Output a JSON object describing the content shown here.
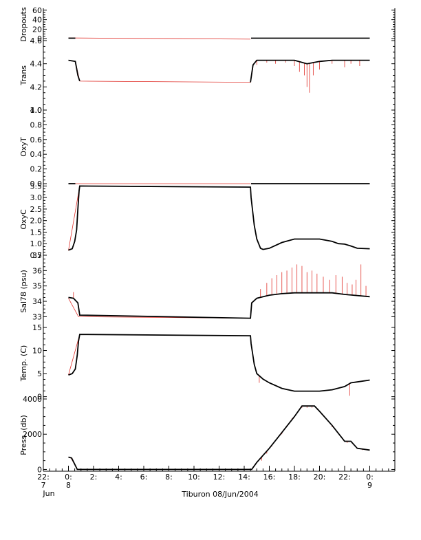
{
  "figure": {
    "xlabel": "Tiburon 08/Jun/2004",
    "colors": {
      "raw": "#e0302a",
      "main": "#000000",
      "axis": "#000000",
      "minor": "#b0b0b0"
    }
  },
  "chart_data": [
    {
      "type": "line",
      "name": "dropouts-panel",
      "ylabel": "Dropouts",
      "ylim": [
        -4,
        64
      ],
      "yticks": [
        0,
        20,
        40,
        60
      ],
      "ytick_labels": [
        "0",
        "20",
        "40",
        "60"
      ],
      "series": [
        {
          "name": "raw",
          "segments": [
            [
              [
                0.0,
                1.5
              ],
              [
                0.55,
                1.5
              ],
              [
                14.5,
                -1.0
              ]
            ]
          ]
        },
        {
          "name": "main",
          "segments": [
            [
              [
                0.0,
                1.0
              ],
              [
                0.55,
                1.0
              ]
            ],
            [
              [
                14.55,
                1.0
              ],
              [
                24.0,
                1.0
              ]
            ]
          ]
        }
      ]
    },
    {
      "type": "line",
      "name": "trans-panel",
      "ylabel": "Trans",
      "ylim": [
        4.0,
        4.6
      ],
      "yticks": [
        4.0,
        4.2,
        4.4,
        4.6
      ],
      "ytick_labels": [
        "4.0",
        "4.2",
        "4.4",
        "4.6"
      ],
      "series": [
        {
          "name": "raw",
          "segments": [
            [
              [
                0.0,
                4.43
              ],
              [
                0.55,
                4.42
              ],
              [
                0.9,
                4.25
              ],
              [
                14.5,
                4.24
              ],
              [
                14.7,
                4.37
              ]
            ]
          ]
        },
        {
          "name": "main",
          "segments": [
            [
              [
                0.0,
                4.43
              ],
              [
                0.55,
                4.42
              ],
              [
                0.75,
                4.3
              ],
              [
                0.9,
                4.25
              ]
            ],
            [
              [
                14.5,
                4.24
              ],
              [
                14.7,
                4.39
              ],
              [
                15.0,
                4.43
              ],
              [
                18.0,
                4.43
              ],
              [
                19.0,
                4.4
              ],
              [
                20.0,
                4.42
              ],
              [
                21.0,
                4.43
              ],
              [
                24.0,
                4.43
              ]
            ]
          ]
        }
      ],
      "spikes_down": {
        "values": [
          [
            15.0,
            4.39
          ],
          [
            15.8,
            4.41
          ],
          [
            16.5,
            4.4
          ],
          [
            17.3,
            4.41
          ],
          [
            18.0,
            4.38
          ],
          [
            18.4,
            4.33
          ],
          [
            18.8,
            4.3
          ],
          [
            19.0,
            4.2
          ],
          [
            19.2,
            4.15
          ],
          [
            19.5,
            4.3
          ],
          [
            20.0,
            4.35
          ],
          [
            21.0,
            4.4
          ],
          [
            22.0,
            4.37
          ],
          [
            22.5,
            4.4
          ],
          [
            23.2,
            4.38
          ]
        ]
      }
    },
    {
      "type": "line",
      "name": "oxyt-panel",
      "ylabel": "OxyT",
      "ylim": [
        0.0,
        1.0
      ],
      "yticks": [
        0.0,
        0.2,
        0.4,
        0.6,
        0.8,
        1.0
      ],
      "ytick_labels": [
        "0.0",
        "0.2",
        "0.4",
        "0.6",
        "0.8",
        "1.0"
      ],
      "series": [
        {
          "name": "raw",
          "segments": [
            [
              [
                0.55,
                0.0
              ],
              [
                14.5,
                0.0
              ]
            ]
          ]
        },
        {
          "name": "main",
          "segments": [
            [
              [
                0.0,
                0.0
              ],
              [
                0.55,
                0.0
              ]
            ],
            [
              [
                14.55,
                0.0
              ],
              [
                24.0,
                0.0
              ]
            ]
          ]
        }
      ]
    },
    {
      "type": "line",
      "name": "oxyc-panel",
      "ylabel": "OxyC",
      "ylim": [
        0.5,
        3.6
      ],
      "yticks": [
        0.5,
        1.0,
        1.5,
        2.0,
        2.5,
        3.0,
        3.5
      ],
      "ytick_labels": [
        "0.5",
        "1.0",
        "1.5",
        "2.0",
        "2.5",
        "3.0",
        "3.5"
      ],
      "series": [
        {
          "name": "raw",
          "segments": [
            [
              [
                0.0,
                0.7
              ],
              [
                0.9,
                3.5
              ],
              [
                14.5,
                3.45
              ]
            ]
          ]
        },
        {
          "name": "main",
          "segments": [
            [
              [
                0.0,
                0.72
              ],
              [
                0.3,
                0.78
              ],
              [
                0.5,
                1.1
              ],
              [
                0.65,
                1.6
              ],
              [
                0.75,
                2.5
              ],
              [
                0.85,
                3.3
              ],
              [
                0.9,
                3.5
              ],
              [
                14.5,
                3.45
              ],
              [
                14.55,
                3.0
              ],
              [
                14.8,
                1.8
              ],
              [
                15.0,
                1.2
              ],
              [
                15.3,
                0.8
              ],
              [
                15.5,
                0.75
              ],
              [
                16.0,
                0.8
              ],
              [
                17.0,
                1.05
              ],
              [
                18.0,
                1.2
              ],
              [
                20.0,
                1.2
              ],
              [
                21.0,
                1.1
              ],
              [
                21.5,
                1.0
              ],
              [
                22.0,
                0.98
              ],
              [
                22.5,
                0.9
              ],
              [
                23.0,
                0.8
              ],
              [
                24.0,
                0.78
              ]
            ]
          ]
        }
      ]
    },
    {
      "type": "line",
      "name": "sal-panel",
      "ylabel": "Sal78 (psu)",
      "ylim": [
        32.3,
        37.0
      ],
      "yticks": [
        33,
        34,
        35,
        36,
        37
      ],
      "ytick_labels": [
        "33",
        "34",
        "35",
        "36",
        "37"
      ],
      "series": [
        {
          "name": "raw",
          "segments": [
            [
              [
                0.0,
                34.2
              ],
              [
                0.8,
                33.0
              ],
              [
                14.5,
                32.9
              ]
            ]
          ]
        },
        {
          "name": "main",
          "segments": [
            [
              [
                0.0,
                34.25
              ],
              [
                0.4,
                34.2
              ],
              [
                0.75,
                33.9
              ],
              [
                0.9,
                33.1
              ],
              [
                14.5,
                32.9
              ],
              [
                14.6,
                33.9
              ],
              [
                15.0,
                34.2
              ],
              [
                16.0,
                34.4
              ],
              [
                17.0,
                34.5
              ],
              [
                18.0,
                34.55
              ],
              [
                21.0,
                34.55
              ],
              [
                22.0,
                34.45
              ],
              [
                24.0,
                34.3
              ]
            ]
          ]
        }
      ],
      "spikes_up": {
        "values": [
          [
            0.4,
            34.6
          ],
          [
            15.3,
            34.8
          ],
          [
            15.8,
            35.2
          ],
          [
            16.2,
            35.5
          ],
          [
            16.6,
            35.7
          ],
          [
            17.0,
            35.9
          ],
          [
            17.4,
            36.0
          ],
          [
            17.8,
            36.2
          ],
          [
            18.2,
            36.4
          ],
          [
            18.6,
            36.3
          ],
          [
            19.0,
            35.9
          ],
          [
            19.4,
            36.0
          ],
          [
            19.8,
            35.8
          ],
          [
            20.3,
            35.6
          ],
          [
            20.8,
            35.4
          ],
          [
            21.3,
            35.7
          ],
          [
            21.8,
            35.6
          ],
          [
            22.2,
            35.2
          ],
          [
            22.6,
            35.1
          ],
          [
            22.9,
            35.4
          ],
          [
            23.3,
            36.4
          ],
          [
            23.7,
            35.0
          ]
        ]
      }
    },
    {
      "type": "line",
      "name": "temp-panel",
      "ylabel": "Temp. (C)",
      "ylim": [
        -0.5,
        15.0
      ],
      "yticks": [
        0,
        5,
        10,
        15
      ],
      "ytick_labels": [
        "0",
        "5",
        "10",
        "15"
      ],
      "series": [
        {
          "name": "raw",
          "segments": [
            [
              [
                0.0,
                4.7
              ],
              [
                0.9,
                13.5
              ],
              [
                14.5,
                13.2
              ]
            ]
          ]
        },
        {
          "name": "main",
          "segments": [
            [
              [
                0.0,
                4.7
              ],
              [
                0.3,
                5.0
              ],
              [
                0.55,
                6.0
              ],
              [
                0.7,
                9.0
              ],
              [
                0.8,
                12.0
              ],
              [
                0.9,
                13.5
              ],
              [
                14.5,
                13.2
              ],
              [
                14.55,
                11.5
              ],
              [
                14.8,
                7.0
              ],
              [
                15.0,
                5.0
              ],
              [
                15.5,
                3.8
              ],
              [
                16.0,
                3.0
              ],
              [
                17.0,
                1.8
              ],
              [
                18.0,
                1.2
              ],
              [
                20.0,
                1.2
              ],
              [
                21.0,
                1.5
              ],
              [
                22.0,
                2.2
              ],
              [
                22.5,
                3.0
              ],
              [
                23.0,
                3.2
              ],
              [
                24.0,
                3.6
              ]
            ]
          ]
        }
      ],
      "spikes_down": {
        "values": [
          [
            22.4,
            0.2
          ],
          [
            15.2,
            3.0
          ]
        ]
      }
    },
    {
      "type": "line",
      "name": "press-panel",
      "ylabel": "Press. (db)",
      "ylim": [
        -100,
        4000
      ],
      "yticks": [
        0,
        2000,
        4000
      ],
      "ytick_labels": [
        "0",
        "2000",
        "4000"
      ],
      "series": [
        {
          "name": "raw",
          "segments": [
            [
              [
                0.0,
                700
              ],
              [
                0.2,
                650
              ],
              [
                0.6,
                150
              ]
            ]
          ]
        },
        {
          "name": "main",
          "segments": [
            [
              [
                0.0,
                700
              ],
              [
                0.25,
                650
              ],
              [
                0.5,
                300
              ],
              [
                0.7,
                0
              ],
              [
                1.0,
                0
              ],
              [
                14.5,
                0
              ],
              [
                14.6,
                0
              ],
              [
                15.0,
                400
              ],
              [
                16.0,
                1200
              ],
              [
                17.0,
                2100
              ],
              [
                18.0,
                3000
              ],
              [
                18.6,
                3600
              ],
              [
                19.6,
                3600
              ],
              [
                20.0,
                3300
              ],
              [
                21.0,
                2500
              ],
              [
                22.0,
                1600
              ],
              [
                22.5,
                1600
              ],
              [
                23.0,
                1200
              ],
              [
                24.0,
                1100
              ]
            ]
          ]
        }
      ],
      "spikes_down": {
        "values": [
          [
            15.4,
            500
          ],
          [
            15.8,
            900
          ],
          [
            16.2,
            1300
          ],
          [
            16.6,
            1700
          ],
          [
            17.0,
            2000
          ],
          [
            17.4,
            2500
          ],
          [
            17.8,
            2900
          ],
          [
            18.2,
            3200
          ],
          [
            18.6,
            3500
          ],
          [
            19.0,
            3500
          ],
          [
            19.4,
            3500
          ],
          [
            19.8,
            3400
          ],
          [
            20.2,
            3100
          ],
          [
            20.6,
            2800
          ],
          [
            21.0,
            2400
          ],
          [
            21.4,
            2100
          ],
          [
            21.8,
            1800
          ],
          [
            22.2,
            1500
          ],
          [
            22.6,
            1500
          ],
          [
            23.0,
            1200
          ],
          [
            23.4,
            1100
          ],
          [
            0.3,
            600
          ]
        ]
      }
    }
  ],
  "x_axis": {
    "range": [
      -2,
      26
    ],
    "major_ticks": [
      {
        "x": -2,
        "label": "22:",
        "sub": "7",
        "sub2": "Jun"
      },
      {
        "x": 0,
        "label": "0:",
        "sub": "8",
        "sub2": ""
      },
      {
        "x": 2,
        "label": "2:",
        "sub": "",
        "sub2": ""
      },
      {
        "x": 4,
        "label": "4:",
        "sub": "",
        "sub2": ""
      },
      {
        "x": 6,
        "label": "6:",
        "sub": "",
        "sub2": ""
      },
      {
        "x": 8,
        "label": "8:",
        "sub": "",
        "sub2": ""
      },
      {
        "x": 10,
        "label": "10:",
        "sub": "",
        "sub2": ""
      },
      {
        "x": 12,
        "label": "12:",
        "sub": "",
        "sub2": ""
      },
      {
        "x": 14,
        "label": "14:",
        "sub": "",
        "sub2": ""
      },
      {
        "x": 16,
        "label": "16:",
        "sub": "",
        "sub2": ""
      },
      {
        "x": 18,
        "label": "18:",
        "sub": "",
        "sub2": ""
      },
      {
        "x": 20,
        "label": "20:",
        "sub": "",
        "sub2": ""
      },
      {
        "x": 22,
        "label": "22:",
        "sub": "",
        "sub2": ""
      },
      {
        "x": 24,
        "label": "0:",
        "sub": "9",
        "sub2": ""
      }
    ]
  }
}
